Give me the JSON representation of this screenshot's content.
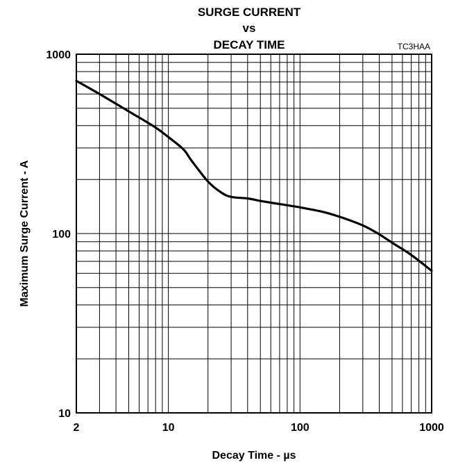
{
  "chart_data": {
    "type": "line",
    "title_lines": [
      "SURGE CURRENT",
      "vs",
      "DECAY TIME"
    ],
    "code": "TC3HAA",
    "xlabel": "Decay Time - µs",
    "ylabel": "Maximum Surge Current - A",
    "x_scale": "log",
    "y_scale": "log",
    "xlim": [
      2,
      1000
    ],
    "ylim": [
      10,
      1000
    ],
    "grid": true,
    "x_ticks": [
      {
        "value": 2,
        "label": "2"
      },
      {
        "value": 10,
        "label": "10"
      },
      {
        "value": 100,
        "label": "100"
      },
      {
        "value": 1000,
        "label": "1000"
      }
    ],
    "y_ticks": [
      {
        "value": 10,
        "label": "10"
      },
      {
        "value": 100,
        "label": "100"
      },
      {
        "value": 1000,
        "label": "1000"
      }
    ],
    "x": [
      2,
      3,
      5,
      8,
      10,
      13,
      15,
      20,
      25,
      30,
      40,
      50,
      70,
      100,
      150,
      200,
      300,
      400,
      500,
      700,
      1000
    ],
    "series": [
      {
        "values": [
          710,
          600,
          480,
          390,
          345,
          295,
          255,
          195,
          170,
          160,
          157,
          152,
          146,
          140,
          132,
          124,
          111,
          99,
          89,
          76,
          62
        ]
      }
    ]
  }
}
